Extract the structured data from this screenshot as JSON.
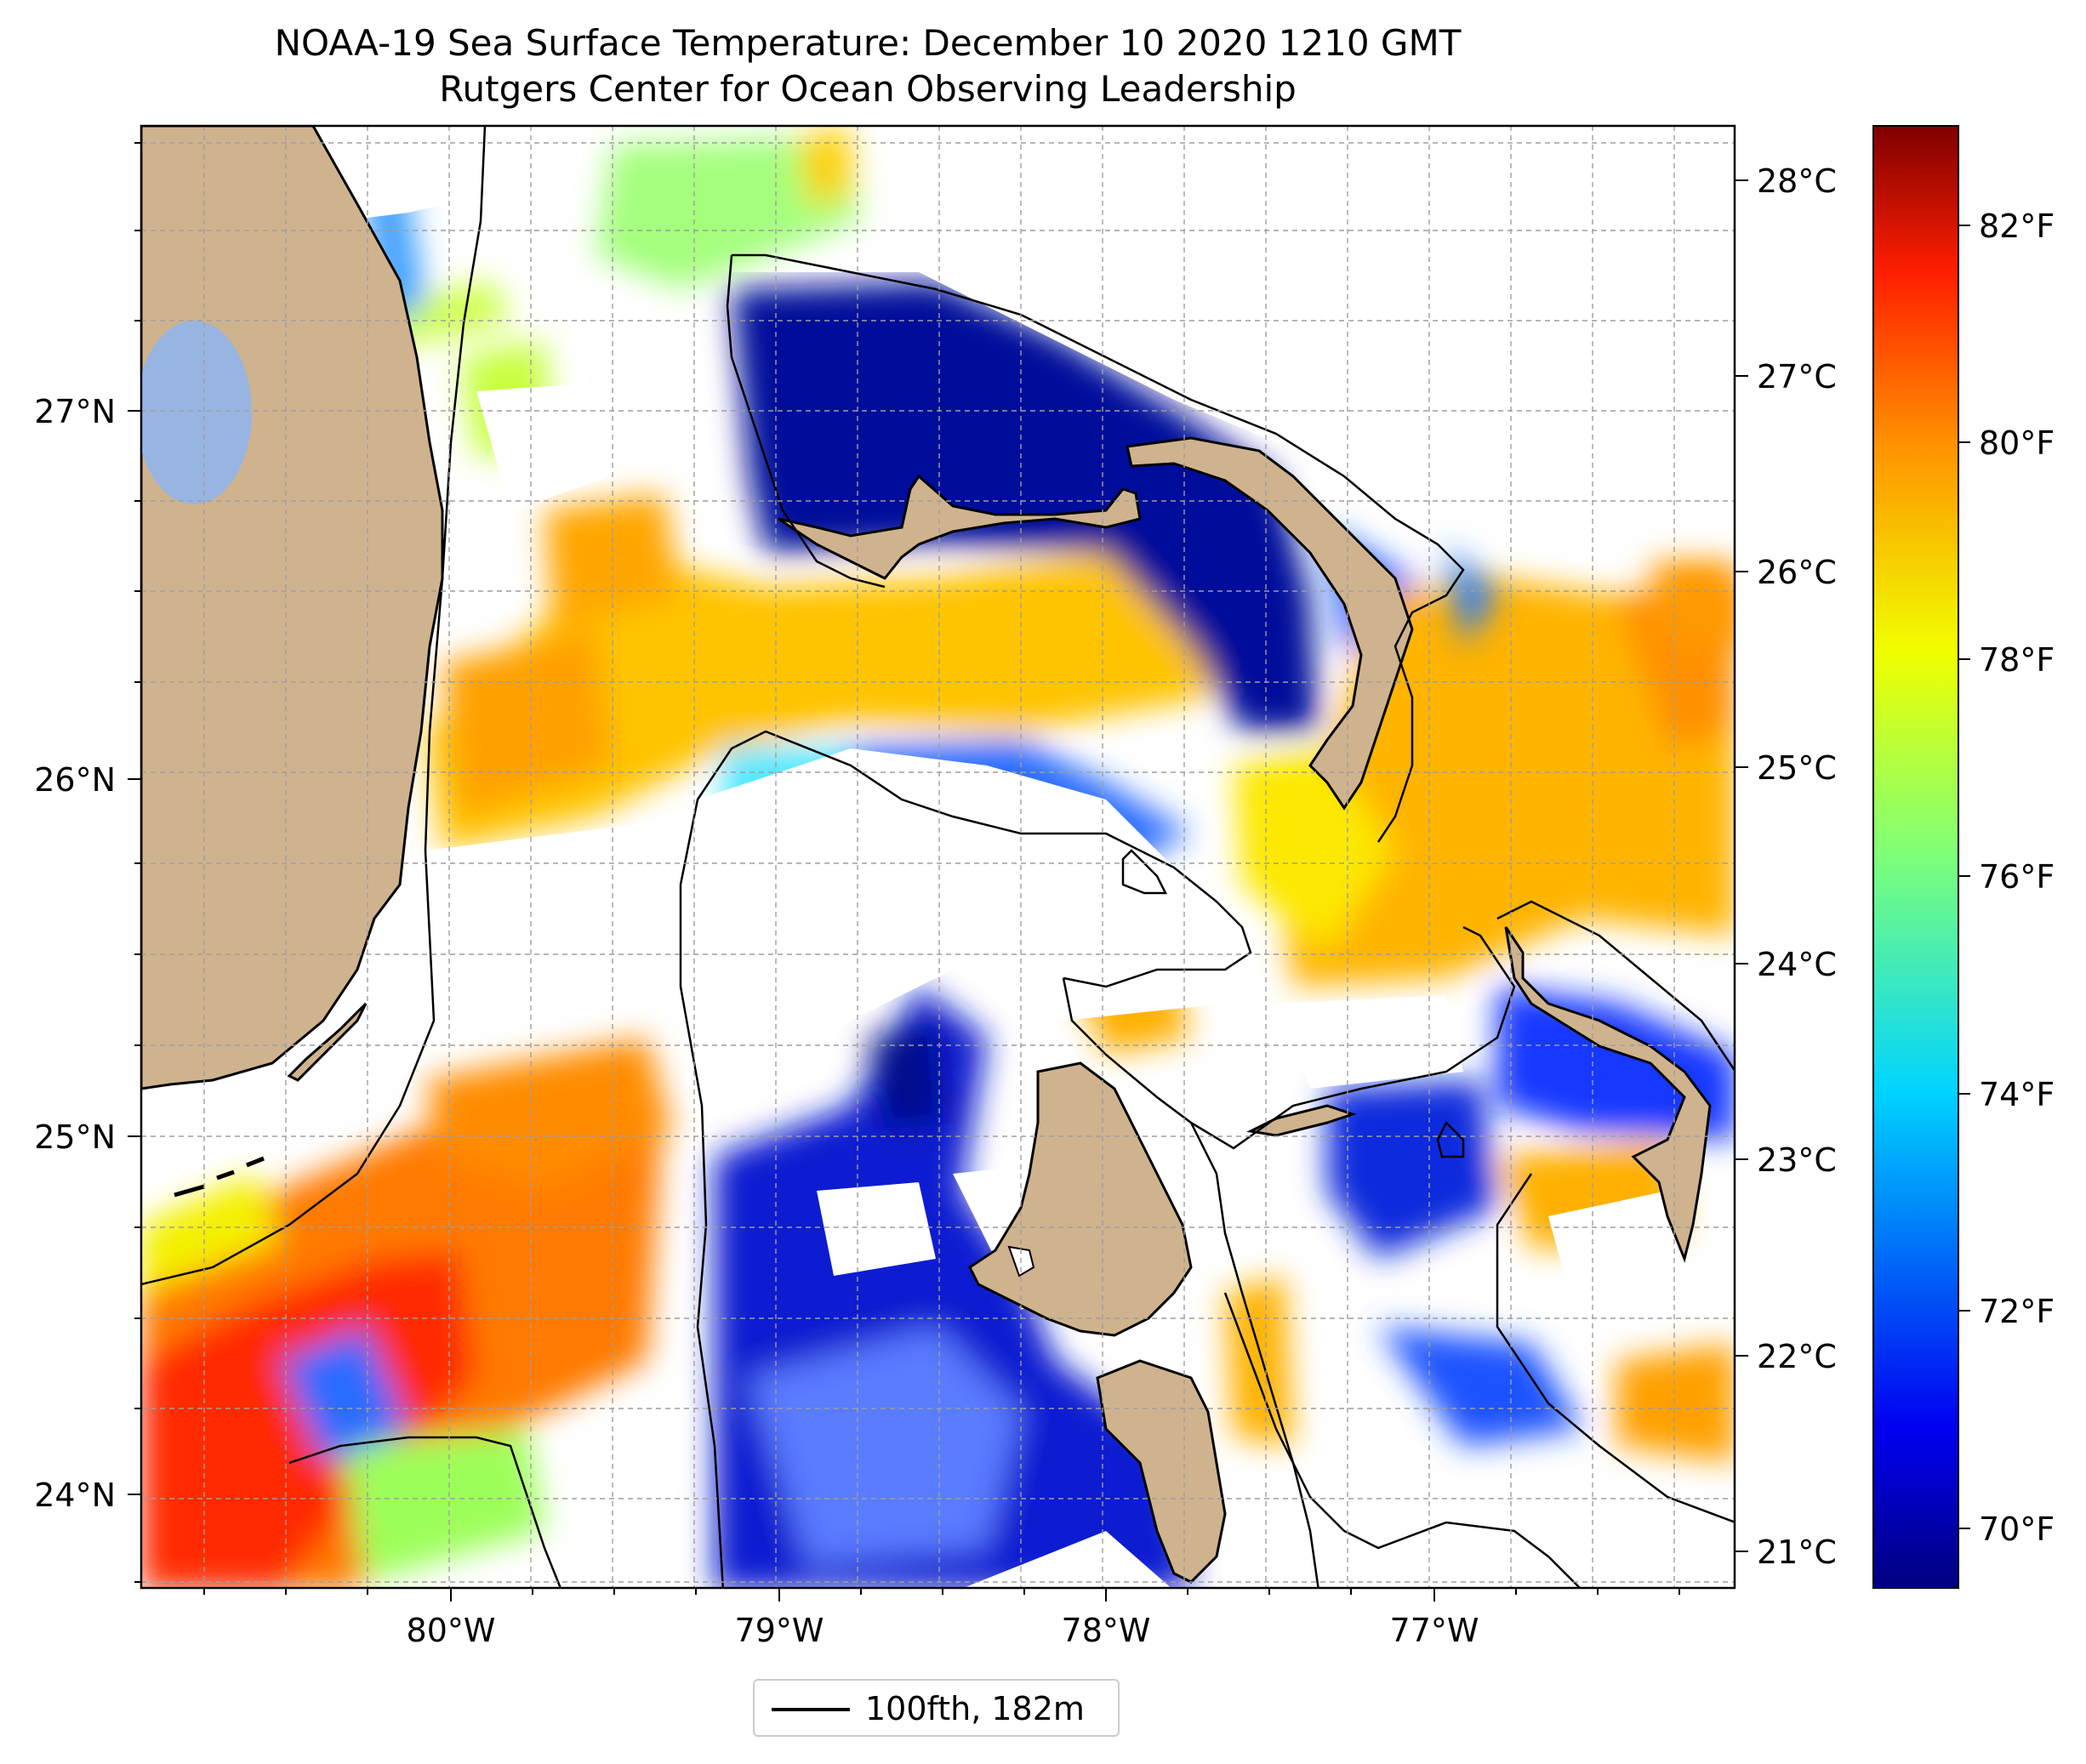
{
  "title": "NOAA-19 Sea Surface Temperature: December 10 2020 1210 GMT",
  "subtitle": "Rutgers Center for Ocean Observing Leadership",
  "map": {
    "lon_labels": [
      "80°W",
      "79°W",
      "78°W",
      "77°W"
    ],
    "lat_labels": [
      "27°N",
      "26°N",
      "25°N",
      "24°N"
    ],
    "grid": true,
    "colors": {
      "land": "#cfb38e",
      "lake": "#98b5e2",
      "cloud": "#ffffff",
      "contour": "#000000"
    }
  },
  "colorbar": {
    "colormap": "jet",
    "celsius_labels": [
      "28°C",
      "27°C",
      "26°C",
      "25°C",
      "24°C",
      "23°C",
      "22°C",
      "21°C"
    ],
    "fahrenheit_labels": [
      "82°F",
      "80°F",
      "78°F",
      "76°F",
      "74°F",
      "72°F",
      "70°F"
    ]
  },
  "legend": {
    "label": "100fth, 182m"
  }
}
